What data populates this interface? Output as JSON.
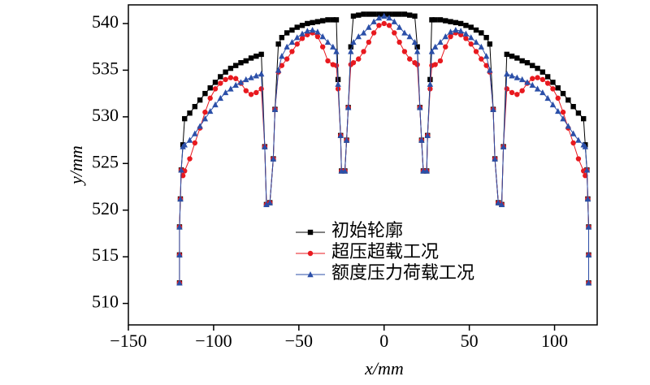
{
  "chart_data": {
    "type": "line",
    "xlabel": "x/mm",
    "ylabel": "y/mm",
    "xlim": [
      -150,
      125
    ],
    "ylim": [
      507.7,
      542
    ],
    "xticks": [
      {
        "value": -150,
        "label": "−150"
      },
      {
        "value": -100,
        "label": "−100"
      },
      {
        "value": -50,
        "label": "−50"
      },
      0,
      50,
      100
    ],
    "yticks": [
      510,
      515,
      520,
      525,
      530,
      535,
      540
    ],
    "x": [
      -120,
      -120,
      -120,
      -119.5,
      -119,
      -118,
      -117,
      -114,
      -111,
      -108,
      -105,
      -102,
      -99,
      -96,
      -93,
      -90,
      -87,
      -84,
      -81,
      -78,
      -75,
      -72,
      -70,
      -69,
      -67,
      -65,
      -64,
      -62,
      -60,
      -57,
      -54,
      -51,
      -48,
      -45,
      -42,
      -39,
      -36,
      -33,
      -30,
      -28,
      -27,
      -25.5,
      -25,
      -23,
      -22,
      -21,
      -19.5,
      -18,
      -15,
      -12,
      -9,
      -6,
      -3,
      0,
      3,
      6,
      9,
      12,
      15,
      18,
      19.5,
      21,
      22,
      23,
      25,
      25.5,
      27,
      28,
      30,
      33,
      36,
      39,
      42,
      45,
      48,
      51,
      54,
      57,
      60,
      62,
      64,
      65,
      67,
      69,
      70,
      72,
      75,
      78,
      81,
      84,
      87,
      90,
      93,
      96,
      99,
      102,
      105,
      108,
      111,
      114,
      117,
      118,
      119,
      119.5,
      120,
      120,
      120
    ],
    "series": [
      {
        "name": "初始轮廓",
        "color": "#000000",
        "marker": "square",
        "values": [
          512.2,
          515.2,
          518.2,
          521.2,
          524.3,
          527.0,
          529.8,
          530.4,
          531.1,
          531.8,
          532.5,
          533.1,
          533.7,
          534.3,
          534.8,
          535.2,
          535.5,
          535.8,
          536.0,
          536.3,
          536.5,
          536.7,
          526.8,
          520.6,
          520.8,
          525.5,
          530.8,
          537.8,
          538.5,
          539.0,
          539.3,
          539.6,
          539.8,
          540.0,
          540.1,
          540.2,
          540.3,
          540.4,
          540.4,
          540.4,
          534.0,
          528.0,
          524.2,
          524.2,
          527.5,
          531.0,
          537.5,
          540.8,
          540.9,
          541.0,
          541.0,
          541.0,
          541.0,
          541.0,
          541.0,
          541.0,
          541.0,
          541.0,
          540.9,
          540.8,
          537.5,
          531.0,
          527.5,
          524.2,
          524.2,
          528.0,
          534.0,
          540.4,
          540.4,
          540.4,
          540.3,
          540.2,
          540.1,
          540.0,
          539.8,
          539.6,
          539.3,
          539.0,
          538.5,
          537.8,
          530.8,
          525.5,
          520.8,
          520.6,
          526.8,
          536.7,
          536.5,
          536.3,
          536.0,
          535.8,
          535.5,
          535.2,
          534.8,
          534.3,
          533.7,
          533.1,
          532.5,
          531.8,
          531.1,
          530.4,
          529.8,
          527.0,
          524.3,
          521.2,
          518.2,
          515.2,
          512.2
        ]
      },
      {
        "name": "超压超载工况",
        "color": "#e8191f",
        "marker": "circle",
        "values": [
          512.2,
          515.2,
          518.2,
          521.2,
          524.3,
          523.7,
          524.2,
          525.5,
          527.2,
          528.8,
          530.5,
          532.0,
          533.0,
          533.6,
          534.0,
          534.2,
          534.1,
          533.6,
          532.8,
          532.4,
          532.6,
          533.0,
          526.8,
          520.6,
          520.8,
          525.5,
          530.8,
          534.8,
          535.5,
          536.2,
          537.0,
          537.8,
          538.4,
          538.8,
          539.0,
          538.6,
          537.5,
          536.0,
          535.6,
          535.5,
          533.0,
          528.0,
          524.2,
          524.2,
          527.5,
          531.0,
          535.6,
          535.8,
          536.2,
          537.0,
          538.0,
          539.0,
          539.8,
          540.0,
          539.8,
          539.0,
          538.0,
          537.0,
          536.2,
          535.8,
          535.6,
          531.0,
          527.5,
          524.2,
          524.2,
          528.0,
          533.0,
          535.5,
          535.6,
          536.0,
          537.5,
          538.6,
          539.0,
          538.8,
          538.4,
          537.8,
          537.0,
          536.2,
          535.5,
          534.8,
          530.8,
          525.5,
          520.8,
          520.6,
          526.8,
          533.0,
          532.6,
          532.4,
          532.8,
          533.6,
          534.1,
          534.2,
          534.0,
          533.6,
          533.0,
          532.0,
          530.5,
          528.8,
          527.2,
          525.5,
          524.2,
          523.7,
          524.3,
          521.2,
          518.2,
          515.2,
          512.2
        ]
      },
      {
        "name": "额度压力荷载工况",
        "color": "#2b4fa8",
        "marker": "triangle",
        "values": [
          512.2,
          515.2,
          518.2,
          521.2,
          524.3,
          526.8,
          527.0,
          527.5,
          528.2,
          529.0,
          529.8,
          530.6,
          531.3,
          532.0,
          532.6,
          533.0,
          533.4,
          533.7,
          534.0,
          534.2,
          534.4,
          534.6,
          526.8,
          520.6,
          520.8,
          525.5,
          530.8,
          535.0,
          536.5,
          537.5,
          538.0,
          538.5,
          538.9,
          539.2,
          539.3,
          539.1,
          538.6,
          538.0,
          537.5,
          537.0,
          533.5,
          528.0,
          524.2,
          524.2,
          527.5,
          531.0,
          537.0,
          538.0,
          538.6,
          539.0,
          539.6,
          540.2,
          540.6,
          540.8,
          540.6,
          540.2,
          539.6,
          539.0,
          538.6,
          538.0,
          537.0,
          531.0,
          527.5,
          524.2,
          524.2,
          528.0,
          533.5,
          537.0,
          537.5,
          538.0,
          538.6,
          539.1,
          539.3,
          539.2,
          538.9,
          538.5,
          538.0,
          537.5,
          536.5,
          535.0,
          530.8,
          525.5,
          520.8,
          520.6,
          526.8,
          534.6,
          534.4,
          534.2,
          534.0,
          533.7,
          533.4,
          533.0,
          532.6,
          532.0,
          531.3,
          530.6,
          529.8,
          529.0,
          528.2,
          527.5,
          527.0,
          526.8,
          524.3,
          521.2,
          518.2,
          515.2,
          512.2
        ]
      }
    ]
  }
}
